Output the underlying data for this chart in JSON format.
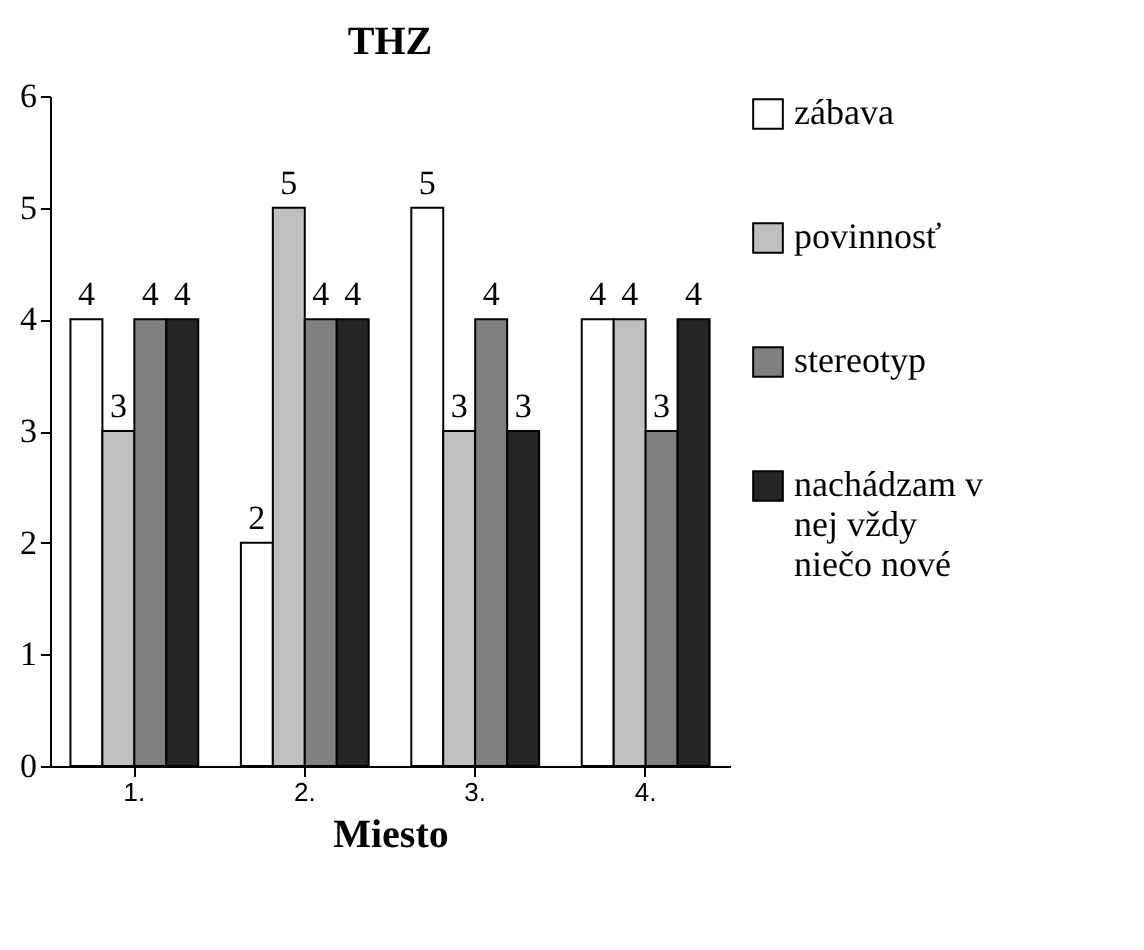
{
  "chart_data": {
    "type": "bar",
    "title": "THZ",
    "xlabel": "Miesto",
    "categories": [
      "1.",
      "2.",
      "3.",
      "4."
    ],
    "series": [
      {
        "name": "zábava",
        "color": "#ffffff",
        "values": [
          4,
          2,
          5,
          4
        ]
      },
      {
        "name": "povinnosť",
        "color": "#c0c0c0",
        "values": [
          3,
          5,
          3,
          4
        ]
      },
      {
        "name": "stereotyp",
        "color": "#808080",
        "values": [
          4,
          4,
          4,
          3
        ]
      },
      {
        "name": "nachádzam v nej vždy niečo nové",
        "color": "#262626",
        "values": [
          4,
          4,
          3,
          4
        ]
      }
    ],
    "ylim": [
      0,
      6
    ],
    "yticks": [
      0,
      1,
      2,
      3,
      4,
      5,
      6
    ],
    "data_labels": true,
    "grid": false,
    "legend": "right"
  }
}
